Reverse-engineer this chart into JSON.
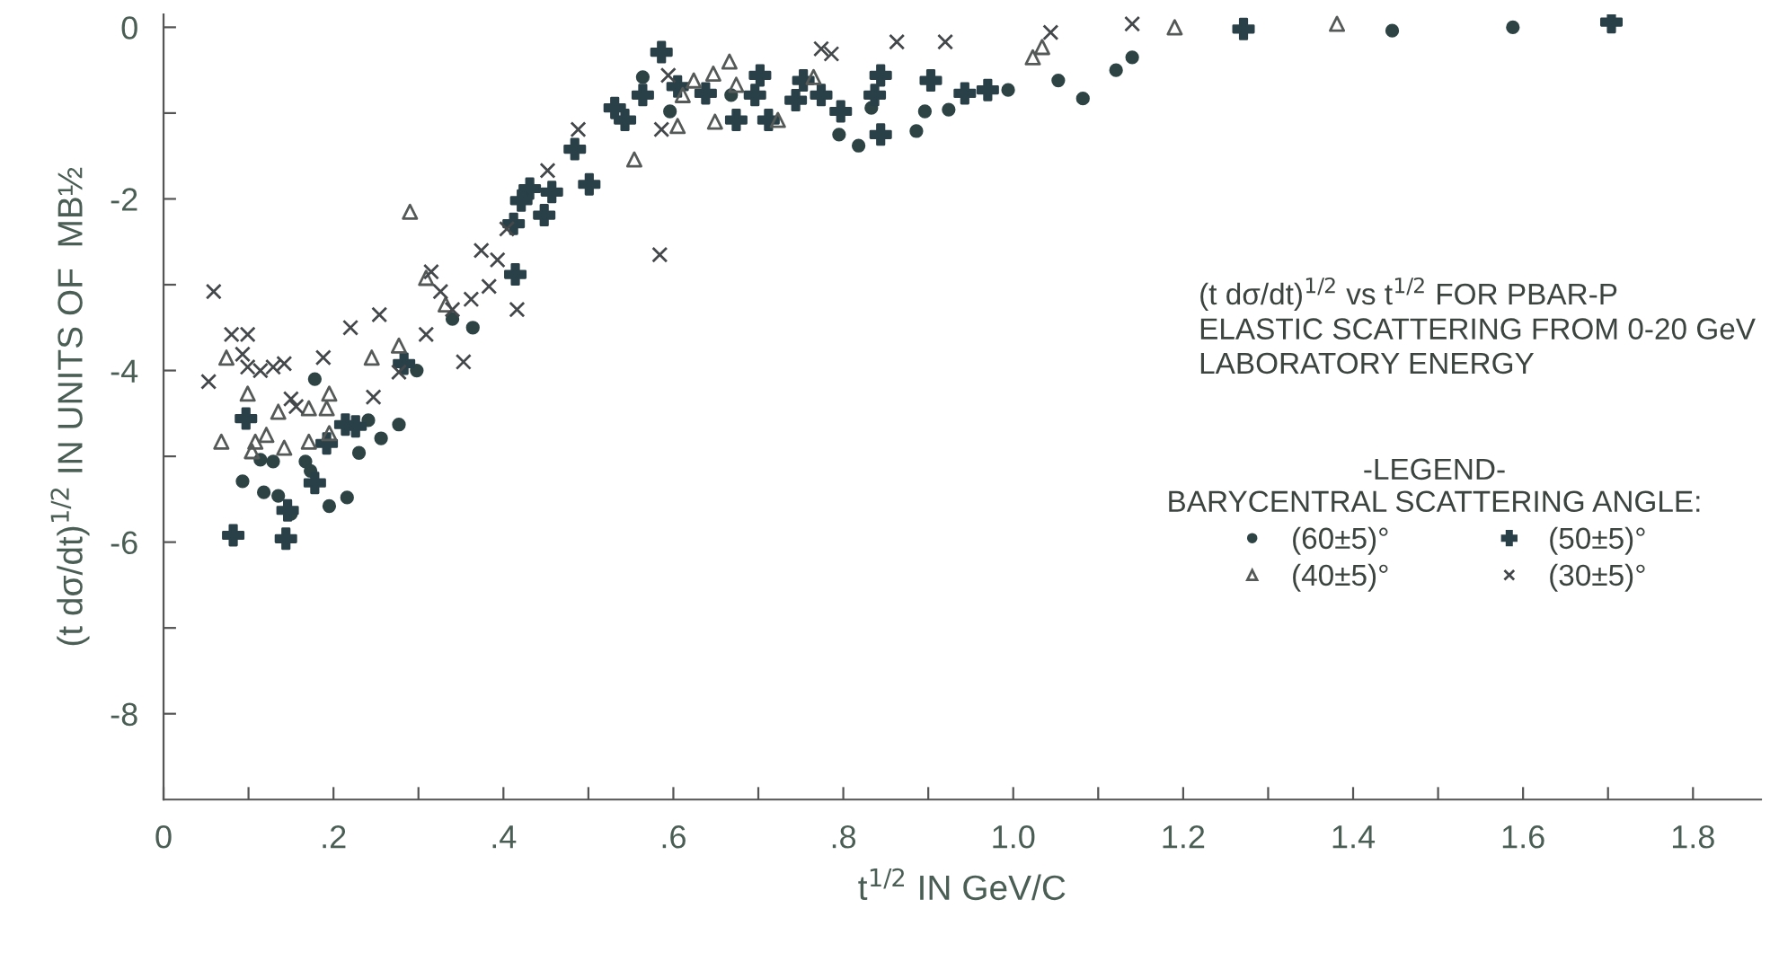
{
  "chart_data": {
    "type": "scatter",
    "xlabel": "t$^{1/2}$ IN GeV/C",
    "ylabel": "(t dσ/dt)$^{1/2}$ IN UNITS OF  MB½",
    "annotations": [
      "(t dσ/dt)$^{1/2}$ vs t$^{1/2}$ FOR PBAR-P\nELASTIC SCATTERING FROM 0-20 GeV\nLABORATORY ENERGY"
    ],
    "legend_title": "-LEGEND-\nBARYCENTRAL SCATTERING ANGLE:",
    "legend": "right",
    "xlim": [
      0,
      1.88
    ],
    "ylim": [
      -9,
      0.15
    ],
    "xticks": [
      0,
      {
        "value": 0.1,
        "label": null
      },
      {
        "value": 0.2,
        "label": ".2"
      },
      {
        "value": 0.3,
        "label": null
      },
      {
        "value": 0.4,
        "label": ".4"
      },
      {
        "value": 0.5,
        "label": null
      },
      {
        "value": 0.6,
        "label": ".6"
      },
      {
        "value": 0.7,
        "label": null
      },
      {
        "value": 0.8,
        "label": ".8"
      },
      {
        "value": 0.9,
        "label": null
      },
      {
        "value": 1.0,
        "label": "1.0"
      },
      {
        "value": 1.1,
        "label": null
      },
      {
        "value": 1.2,
        "label": "1.2"
      },
      {
        "value": 1.3,
        "label": null
      },
      {
        "value": 1.4,
        "label": "1.4"
      },
      {
        "value": 1.5,
        "label": null
      },
      {
        "value": 1.6,
        "label": "1.6"
      },
      {
        "value": 1.7,
        "label": null
      },
      {
        "value": 1.8,
        "label": "1.8"
      }
    ],
    "yticks": [
      0,
      {
        "value": -1,
        "label": null
      },
      -2,
      {
        "value": -3,
        "label": null
      },
      -4,
      {
        "value": -5,
        "label": null
      },
      -6,
      {
        "value": -7,
        "label": null
      },
      -8
    ],
    "grid": false,
    "series": [
      {
        "name": "(60±5)°",
        "marker": "circle",
        "color": "#2e4444",
        "x": [
          0.178,
          0.093,
          0.114,
          0.129,
          0.118,
          0.135,
          0.15,
          0.216,
          0.195,
          0.23,
          0.256,
          0.277,
          0.364,
          0.167,
          0.173,
          0.241,
          0.298,
          0.34,
          0.596,
          0.668,
          0.795,
          0.818,
          0.886,
          0.896,
          0.924,
          0.564,
          0.833,
          0.994,
          1.053,
          1.082,
          1.121,
          1.14,
          1.446,
          1.588
        ],
        "values": [
          -4.1,
          -5.29,
          -5.04,
          -5.06,
          -5.42,
          -5.46,
          -5.67,
          -5.48,
          -5.58,
          -4.96,
          -4.79,
          -4.63,
          -3.5,
          -5.06,
          -5.17,
          -4.58,
          -4.0,
          -3.4,
          -0.98,
          -0.79,
          -1.25,
          -1.38,
          -1.21,
          -0.98,
          -0.96,
          -0.58,
          -0.94,
          -0.73,
          -0.62,
          -0.83,
          -0.5,
          -0.35,
          -0.04,
          0
        ]
      },
      {
        "name": "(50±5)°",
        "marker": "plus",
        "color": "#2a4048",
        "x": [
          0.097,
          0.082,
          0.144,
          0.214,
          0.226,
          0.192,
          0.178,
          0.414,
          0.283,
          0.146,
          0.586,
          0.564,
          0.605,
          0.638,
          0.702,
          0.696,
          0.674,
          0.712,
          0.744,
          0.753,
          0.774,
          0.797,
          0.844,
          0.837,
          0.844,
          0.903,
          0.943,
          0.97,
          0.531,
          0.484,
          0.457,
          0.501,
          0.448,
          0.543,
          0.431,
          0.421,
          0.412,
          1.271,
          1.704
        ],
        "values": [
          -4.56,
          -5.92,
          -5.96,
          -4.63,
          -4.65,
          -4.85,
          -5.31,
          -2.88,
          -3.92,
          -5.63,
          -0.29,
          -0.79,
          -0.69,
          -0.77,
          -0.56,
          -0.79,
          -1.08,
          -1.08,
          -0.85,
          -0.62,
          -0.79,
          -0.98,
          -0.56,
          -0.79,
          -1.25,
          -0.62,
          -0.77,
          -0.73,
          -0.94,
          -1.42,
          -1.92,
          -1.83,
          -2.19,
          -1.08,
          -1.88,
          -2.02,
          -2.29,
          -0.02,
          0.06
        ]
      },
      {
        "name": "(40±5)°",
        "marker": "triangle",
        "color": "#555a58",
        "x": [
          0.074,
          0.068,
          0.099,
          0.108,
          0.104,
          0.121,
          0.135,
          0.142,
          0.171,
          0.195,
          0.192,
          0.245,
          0.277,
          0.309,
          0.332,
          0.195,
          0.171,
          0.29,
          0.666,
          0.624,
          0.647,
          0.674,
          0.649,
          0.605,
          0.554,
          0.723,
          0.765,
          0.611,
          1.023,
          1.034,
          1.19,
          1.381
        ],
        "values": [
          -3.85,
          -4.83,
          -4.27,
          -4.83,
          -4.94,
          -4.75,
          -4.48,
          -4.9,
          -4.44,
          -4.27,
          -4.44,
          -3.85,
          -3.71,
          -2.92,
          -3.23,
          -4.73,
          -4.83,
          -2.15,
          -0.4,
          -0.62,
          -0.54,
          -0.67,
          -1.1,
          -1.15,
          -1.54,
          -1.08,
          -0.58,
          -0.79,
          -0.35,
          -0.23,
          0,
          0.04
        ]
      },
      {
        "name": "(30±5)°",
        "marker": "cross",
        "color": "#44484a",
        "x": [
          0.059,
          0.053,
          0.08,
          0.099,
          0.093,
          0.099,
          0.114,
          0.129,
          0.142,
          0.15,
          0.156,
          0.188,
          0.22,
          0.254,
          0.247,
          0.277,
          0.309,
          0.315,
          0.326,
          0.34,
          0.362,
          0.383,
          0.393,
          0.416,
          0.353,
          0.374,
          0.404,
          0.488,
          0.452,
          0.586,
          0.584,
          0.774,
          0.786,
          0.863,
          0.92,
          0.594,
          1.044,
          1.14
        ],
        "values": [
          -3.08,
          -4.13,
          -3.58,
          -3.58,
          -3.81,
          -3.96,
          -4.0,
          -3.96,
          -3.92,
          -4.33,
          -4.42,
          -3.85,
          -3.5,
          -3.35,
          -4.31,
          -4.02,
          -3.58,
          -2.85,
          -3.08,
          -3.29,
          -3.17,
          -3.02,
          -2.71,
          -3.29,
          -3.9,
          -2.6,
          -2.35,
          -1.19,
          -1.67,
          -1.19,
          -2.65,
          -0.25,
          -0.31,
          -0.17,
          -0.17,
          -0.56,
          -0.06,
          0.04
        ]
      }
    ]
  }
}
